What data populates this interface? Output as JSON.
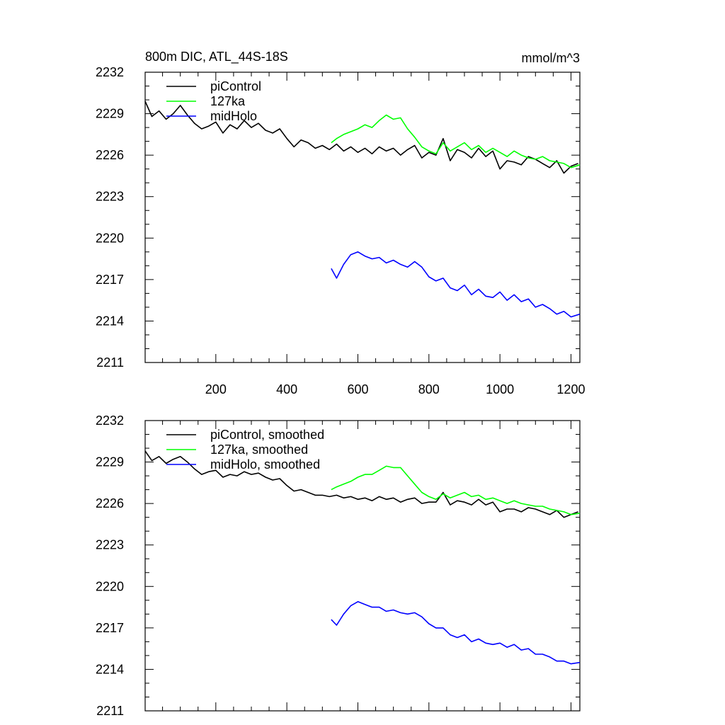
{
  "chart_data": [
    {
      "type": "line",
      "title": "800m DIC, ATL_44S-18S",
      "units": "mmol/m^3",
      "xlabel": "",
      "ylabel": "",
      "xlim": [
        1,
        1225
      ],
      "ylim": [
        2211,
        2232
      ],
      "xticks": [
        200,
        400,
        600,
        800,
        1000,
        1200
      ],
      "xtick_labels": [
        "200",
        "400",
        "600",
        "800",
        "1000",
        "1200"
      ],
      "yticks": [
        2211,
        2214,
        2217,
        2220,
        2223,
        2226,
        2229,
        2232
      ],
      "ytick_labels": [
        "2211",
        "2214",
        "2217",
        "2220",
        "2223",
        "2226",
        "2229",
        "2232"
      ],
      "legend_position": "top-left",
      "grid": false,
      "series": [
        {
          "name": "piControl",
          "color": "#000000",
          "x": [
            1,
            20,
            40,
            60,
            80,
            100,
            120,
            140,
            160,
            180,
            200,
            220,
            240,
            260,
            280,
            300,
            320,
            340,
            360,
            380,
            400,
            420,
            440,
            460,
            480,
            500,
            520,
            540,
            560,
            580,
            600,
            620,
            640,
            660,
            680,
            700,
            720,
            740,
            760,
            780,
            800,
            820,
            840,
            860,
            880,
            900,
            920,
            940,
            960,
            980,
            1000,
            1020,
            1040,
            1060,
            1080,
            1100,
            1120,
            1140,
            1160,
            1180,
            1200,
            1220
          ],
          "values": [
            2229.9,
            2228.8,
            2229.2,
            2228.6,
            2229.0,
            2229.6,
            2228.9,
            2228.3,
            2227.9,
            2228.1,
            2228.4,
            2227.6,
            2228.2,
            2227.9,
            2228.5,
            2228.0,
            2228.3,
            2227.8,
            2227.6,
            2227.9,
            2227.2,
            2226.6,
            2227.1,
            2226.9,
            2226.5,
            2226.7,
            2226.4,
            2226.8,
            2226.3,
            2226.6,
            2226.2,
            2226.5,
            2226.1,
            2226.6,
            2226.3,
            2226.5,
            2226.0,
            2226.4,
            2226.7,
            2225.8,
            2226.2,
            2226.0,
            2227.2,
            2225.6,
            2226.4,
            2226.2,
            2225.8,
            2226.5,
            2225.9,
            2226.3,
            2225.0,
            2225.6,
            2225.5,
            2225.3,
            2225.9,
            2225.7,
            2225.4,
            2225.1,
            2225.6,
            2224.7,
            2225.2,
            2225.4
          ]
        },
        {
          "name": "127ka",
          "color": "#00ff00",
          "x": [
            525,
            540,
            560,
            580,
            600,
            620,
            640,
            660,
            680,
            700,
            720,
            740,
            760,
            780,
            800,
            820,
            840,
            860,
            880,
            900,
            920,
            940,
            960,
            980,
            1000,
            1020,
            1040,
            1060,
            1080,
            1100,
            1120,
            1140,
            1160,
            1180,
            1200,
            1225
          ],
          "values": [
            2226.9,
            2227.2,
            2227.5,
            2227.7,
            2227.9,
            2228.2,
            2228.0,
            2228.5,
            2228.9,
            2228.6,
            2228.7,
            2227.9,
            2227.3,
            2226.6,
            2226.3,
            2226.1,
            2226.9,
            2226.3,
            2226.6,
            2226.9,
            2226.4,
            2226.7,
            2226.2,
            2226.5,
            2226.2,
            2225.9,
            2226.3,
            2226.0,
            2225.8,
            2225.7,
            2225.9,
            2225.6,
            2225.5,
            2225.4,
            2225.1,
            2225.3
          ]
        },
        {
          "name": "midHolo",
          "color": "#0000ff",
          "x": [
            525,
            540,
            560,
            580,
            600,
            620,
            640,
            660,
            680,
            700,
            720,
            740,
            760,
            780,
            800,
            820,
            840,
            860,
            880,
            900,
            920,
            940,
            960,
            980,
            1000,
            1020,
            1040,
            1060,
            1080,
            1100,
            1120,
            1140,
            1160,
            1180,
            1200,
            1225
          ],
          "values": [
            2217.8,
            2217.1,
            2218.1,
            2218.8,
            2219.0,
            2218.7,
            2218.5,
            2218.6,
            2218.2,
            2218.4,
            2218.1,
            2217.9,
            2218.3,
            2217.9,
            2217.2,
            2216.9,
            2217.1,
            2216.4,
            2216.2,
            2216.6,
            2215.9,
            2216.3,
            2215.8,
            2215.7,
            2216.1,
            2215.5,
            2215.9,
            2215.4,
            2215.6,
            2215.0,
            2215.2,
            2214.9,
            2214.5,
            2214.7,
            2214.3,
            2214.5
          ]
        }
      ]
    },
    {
      "type": "line",
      "title": "",
      "xlabel": "",
      "ylabel": "",
      "xlim": [
        1,
        1225
      ],
      "ylim": [
        2211,
        2232
      ],
      "xticks": [
        200,
        400,
        600,
        800,
        1000,
        1200
      ],
      "yticks": [
        2211,
        2214,
        2217,
        2220,
        2223,
        2226,
        2229,
        2232
      ],
      "ytick_labels": [
        "2211",
        "2214",
        "2217",
        "2220",
        "2223",
        "2226",
        "2229",
        "2232"
      ],
      "legend_position": "top-left",
      "grid": false,
      "series": [
        {
          "name": "piControl, smoothed",
          "color": "#000000",
          "x": [
            1,
            20,
            40,
            60,
            80,
            100,
            120,
            140,
            160,
            180,
            200,
            220,
            240,
            260,
            280,
            300,
            320,
            340,
            360,
            380,
            400,
            420,
            440,
            460,
            480,
            500,
            520,
            540,
            560,
            580,
            600,
            620,
            640,
            660,
            680,
            700,
            720,
            740,
            760,
            780,
            800,
            820,
            840,
            860,
            880,
            900,
            920,
            940,
            960,
            980,
            1000,
            1020,
            1040,
            1060,
            1080,
            1100,
            1120,
            1140,
            1160,
            1180,
            1200,
            1220
          ],
          "values": [
            2229.8,
            2229.1,
            2229.4,
            2228.9,
            2229.2,
            2229.4,
            2229.0,
            2228.5,
            2228.1,
            2228.3,
            2228.4,
            2227.9,
            2228.1,
            2228.0,
            2228.3,
            2228.1,
            2228.2,
            2227.9,
            2227.7,
            2227.8,
            2227.3,
            2226.9,
            2227.0,
            2226.8,
            2226.6,
            2226.6,
            2226.5,
            2226.6,
            2226.4,
            2226.5,
            2226.3,
            2226.4,
            2226.2,
            2226.5,
            2226.3,
            2226.4,
            2226.1,
            2226.3,
            2226.4,
            2226.0,
            2226.1,
            2226.1,
            2226.8,
            2225.9,
            2226.2,
            2226.1,
            2225.9,
            2226.3,
            2225.9,
            2226.1,
            2225.4,
            2225.6,
            2225.6,
            2225.4,
            2225.7,
            2225.6,
            2225.4,
            2225.2,
            2225.5,
            2225.0,
            2225.2,
            2225.4
          ]
        },
        {
          "name": "127ka, smoothed",
          "color": "#00ff00",
          "x": [
            525,
            540,
            560,
            580,
            600,
            620,
            640,
            660,
            680,
            700,
            720,
            740,
            760,
            780,
            800,
            820,
            840,
            860,
            880,
            900,
            920,
            940,
            960,
            980,
            1000,
            1020,
            1040,
            1060,
            1080,
            1100,
            1120,
            1140,
            1160,
            1180,
            1200,
            1225
          ],
          "values": [
            2227.0,
            2227.2,
            2227.4,
            2227.6,
            2227.9,
            2228.1,
            2228.1,
            2228.4,
            2228.7,
            2228.6,
            2228.6,
            2228.0,
            2227.4,
            2226.8,
            2226.5,
            2226.3,
            2226.7,
            2226.4,
            2226.6,
            2226.8,
            2226.5,
            2226.6,
            2226.3,
            2226.4,
            2226.2,
            2226.0,
            2226.2,
            2226.0,
            2225.9,
            2225.8,
            2225.8,
            2225.6,
            2225.5,
            2225.4,
            2225.2,
            2225.3
          ]
        },
        {
          "name": "midHolo, smoothed",
          "color": "#0000ff",
          "x": [
            525,
            540,
            560,
            580,
            600,
            620,
            640,
            660,
            680,
            700,
            720,
            740,
            760,
            780,
            800,
            820,
            840,
            860,
            880,
            900,
            920,
            940,
            960,
            980,
            1000,
            1020,
            1040,
            1060,
            1080,
            1100,
            1120,
            1140,
            1160,
            1180,
            1200,
            1225
          ],
          "values": [
            2217.6,
            2217.2,
            2218.0,
            2218.6,
            2218.9,
            2218.7,
            2218.5,
            2218.5,
            2218.2,
            2218.3,
            2218.1,
            2218.0,
            2218.1,
            2217.8,
            2217.3,
            2217.0,
            2217.0,
            2216.5,
            2216.3,
            2216.5,
            2216.0,
            2216.2,
            2215.9,
            2215.8,
            2215.9,
            2215.6,
            2215.8,
            2215.4,
            2215.5,
            2215.1,
            2215.1,
            2214.9,
            2214.6,
            2214.6,
            2214.4,
            2214.5
          ]
        }
      ]
    }
  ]
}
